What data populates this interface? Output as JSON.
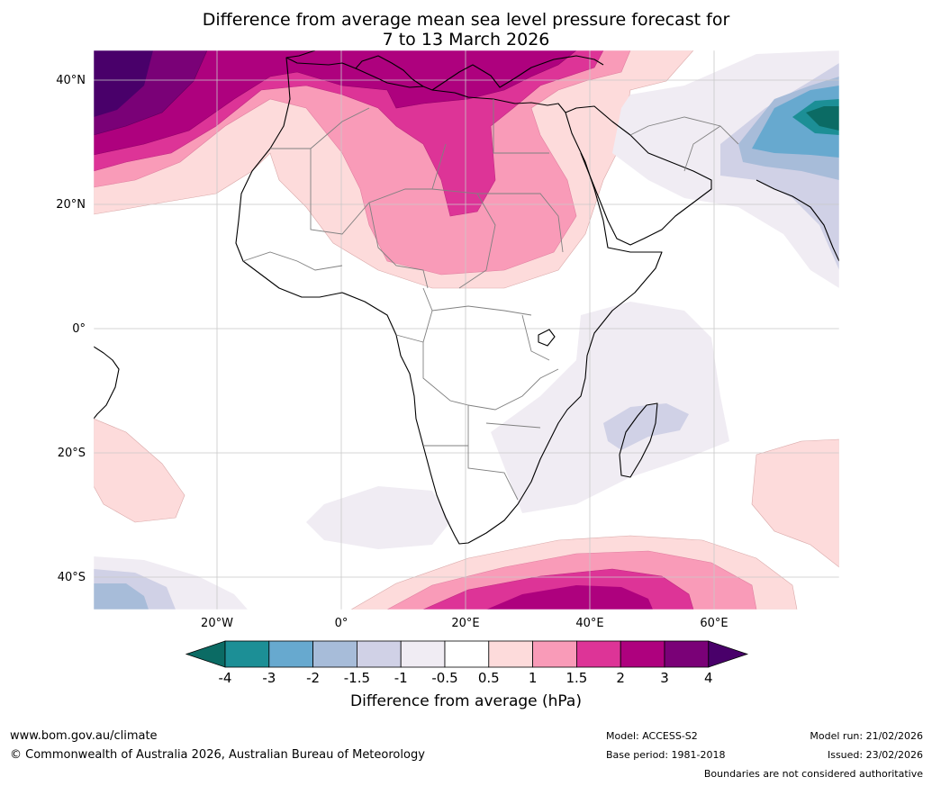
{
  "title": {
    "line1": "Difference from average mean sea level pressure forecast for",
    "line2": "7 to 13 March 2026"
  },
  "map": {
    "lat_labels": [
      "40°N",
      "20°N",
      "0°",
      "20°S",
      "40°S"
    ],
    "lon_labels": [
      "20°W",
      "0°",
      "20°E",
      "40°E",
      "60°E"
    ]
  },
  "colorbar": {
    "title": "Difference from average (hPa)",
    "ticks": [
      "-4",
      "-3",
      "-2",
      "-1.5",
      "-1",
      "-0.5",
      "0.5",
      "1",
      "1.5",
      "2",
      "3",
      "4"
    ],
    "colors": [
      "#0b6b64",
      "#1c8f96",
      "#67a9cf",
      "#a7bcd9",
      "#d0d1e6",
      "#f0ecf3",
      "#ffffff",
      "#fddbdb",
      "#f99bb8",
      "#dd3497",
      "#ae017e",
      "#7a0177",
      "#49006a"
    ]
  },
  "footer": {
    "website": "www.bom.gov.au/climate",
    "copyright": "© Commonwealth of Australia 2026, Australian Bureau of Meteorology",
    "model": "Model: ACCESS-S2",
    "base_period": "Base period: 1981-2018",
    "model_run": "Model run: 21/02/2026",
    "issued": "Issued: 23/02/2026",
    "boundaries": "Boundaries are not considered authoritative"
  }
}
